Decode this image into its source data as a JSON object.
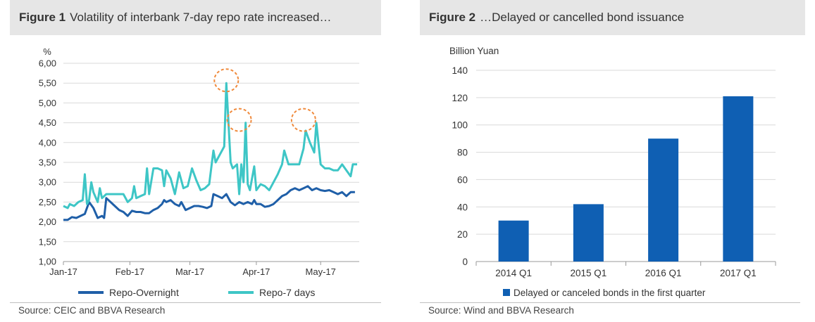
{
  "colors": {
    "overnight": "#1f5fa8",
    "seven_day": "#3ec6c6",
    "bar": "#0f5fb3",
    "circle": "#f08a3c",
    "grid": "#d9d9d9"
  },
  "figure1": {
    "label": "Figure 1",
    "title": "Volatility of interbank 7-day repo rate increased…",
    "source": "Source: CEIC and BBVA Research"
  },
  "figure2": {
    "label": "Figure 2",
    "title": "…Delayed or cancelled bond issuance",
    "source": "Source: Wind and BBVA Research"
  },
  "chart_data": [
    {
      "type": "line",
      "ylabel": "%",
      "ylim": [
        1.0,
        6.0
      ],
      "yticks": [
        "1,00",
        "1,50",
        "2,00",
        "2,50",
        "3,00",
        "3,50",
        "4,00",
        "4,50",
        "5,00",
        "5,50",
        "6,00"
      ],
      "xticks": [
        {
          "label": "Jan-17",
          "x": 0
        },
        {
          "label": "Feb-17",
          "x": 31
        },
        {
          "label": "Mar-17",
          "x": 59
        },
        {
          "label": "Apr-17",
          "x": 90
        },
        {
          "label": "May-17",
          "x": 120
        }
      ],
      "xlim": [
        0,
        138
      ],
      "grid": true,
      "legend": "bottom",
      "highlights": [
        {
          "x": 76,
          "y": 5.5
        },
        {
          "x": 82,
          "y": 4.5
        },
        {
          "x": 112,
          "y": 4.5
        }
      ],
      "series": [
        {
          "name": "Repo-Overnight",
          "color_key": "overnight",
          "points": [
            [
              0,
              2.05
            ],
            [
              2,
              2.05
            ],
            [
              4,
              2.12
            ],
            [
              6,
              2.1
            ],
            [
              8,
              2.15
            ],
            [
              10,
              2.2
            ],
            [
              12,
              2.5
            ],
            [
              14,
              2.35
            ],
            [
              16,
              2.1
            ],
            [
              18,
              2.15
            ],
            [
              19,
              2.1
            ],
            [
              20,
              2.6
            ],
            [
              22,
              2.5
            ],
            [
              24,
              2.4
            ],
            [
              26,
              2.3
            ],
            [
              28,
              2.25
            ],
            [
              30,
              2.15
            ],
            [
              32,
              2.28
            ],
            [
              34,
              2.25
            ],
            [
              36,
              2.25
            ],
            [
              38,
              2.22
            ],
            [
              40,
              2.22
            ],
            [
              42,
              2.3
            ],
            [
              44,
              2.35
            ],
            [
              46,
              2.45
            ],
            [
              47,
              2.55
            ],
            [
              48,
              2.5
            ],
            [
              50,
              2.55
            ],
            [
              52,
              2.45
            ],
            [
              54,
              2.4
            ],
            [
              55,
              2.5
            ],
            [
              57,
              2.3
            ],
            [
              59,
              2.35
            ],
            [
              61,
              2.4
            ],
            [
              63,
              2.4
            ],
            [
              65,
              2.38
            ],
            [
              67,
              2.35
            ],
            [
              69,
              2.4
            ],
            [
              70,
              2.7
            ],
            [
              72,
              2.65
            ],
            [
              74,
              2.6
            ],
            [
              76,
              2.7
            ],
            [
              78,
              2.5
            ],
            [
              80,
              2.42
            ],
            [
              82,
              2.5
            ],
            [
              84,
              2.45
            ],
            [
              86,
              2.5
            ],
            [
              88,
              2.45
            ],
            [
              89,
              2.55
            ],
            [
              90,
              2.45
            ],
            [
              92,
              2.45
            ],
            [
              94,
              2.38
            ],
            [
              96,
              2.4
            ],
            [
              98,
              2.45
            ],
            [
              100,
              2.55
            ],
            [
              102,
              2.65
            ],
            [
              104,
              2.7
            ],
            [
              106,
              2.8
            ],
            [
              108,
              2.85
            ],
            [
              110,
              2.8
            ],
            [
              112,
              2.85
            ],
            [
              114,
              2.9
            ],
            [
              116,
              2.8
            ],
            [
              118,
              2.85
            ],
            [
              120,
              2.8
            ],
            [
              122,
              2.78
            ],
            [
              124,
              2.8
            ],
            [
              126,
              2.75
            ],
            [
              128,
              2.7
            ],
            [
              130,
              2.75
            ],
            [
              132,
              2.65
            ],
            [
              134,
              2.75
            ],
            [
              136,
              2.75
            ]
          ]
        },
        {
          "name": "Repo-7 days",
          "color_key": "seven_day",
          "points": [
            [
              0,
              2.4
            ],
            [
              2,
              2.35
            ],
            [
              3,
              2.45
            ],
            [
              5,
              2.4
            ],
            [
              7,
              2.5
            ],
            [
              9,
              2.55
            ],
            [
              10,
              3.2
            ],
            [
              11,
              2.45
            ],
            [
              12,
              2.55
            ],
            [
              13,
              3.0
            ],
            [
              14,
              2.75
            ],
            [
              16,
              2.5
            ],
            [
              17,
              2.85
            ],
            [
              18,
              2.6
            ],
            [
              20,
              2.7
            ],
            [
              24,
              2.7
            ],
            [
              28,
              2.7
            ],
            [
              30,
              2.5
            ],
            [
              32,
              2.6
            ],
            [
              33,
              2.9
            ],
            [
              34,
              2.6
            ],
            [
              36,
              2.65
            ],
            [
              38,
              2.7
            ],
            [
              39,
              3.35
            ],
            [
              40,
              2.7
            ],
            [
              42,
              3.35
            ],
            [
              44,
              3.35
            ],
            [
              46,
              3.3
            ],
            [
              47,
              2.9
            ],
            [
              48,
              3.3
            ],
            [
              50,
              3.1
            ],
            [
              52,
              2.7
            ],
            [
              54,
              3.25
            ],
            [
              56,
              2.85
            ],
            [
              58,
              2.9
            ],
            [
              60,
              3.35
            ],
            [
              62,
              3.05
            ],
            [
              64,
              2.8
            ],
            [
              66,
              2.85
            ],
            [
              68,
              2.95
            ],
            [
              70,
              3.8
            ],
            [
              71,
              3.5
            ],
            [
              73,
              3.7
            ],
            [
              75,
              3.9
            ],
            [
              76,
              5.5
            ],
            [
              78,
              3.5
            ],
            [
              79,
              3.35
            ],
            [
              81,
              3.45
            ],
            [
              82,
              2.7
            ],
            [
              83,
              3.45
            ],
            [
              84,
              3.0
            ],
            [
              85,
              4.5
            ],
            [
              86,
              2.95
            ],
            [
              87,
              2.8
            ],
            [
              89,
              3.4
            ],
            [
              90,
              2.8
            ],
            [
              92,
              2.95
            ],
            [
              94,
              2.9
            ],
            [
              96,
              2.8
            ],
            [
              98,
              3.0
            ],
            [
              100,
              3.2
            ],
            [
              102,
              3.45
            ],
            [
              103,
              3.8
            ],
            [
              105,
              3.45
            ],
            [
              110,
              3.45
            ],
            [
              112,
              3.85
            ],
            [
              113,
              4.3
            ],
            [
              115,
              4.0
            ],
            [
              117,
              3.75
            ],
            [
              118,
              4.5
            ],
            [
              120,
              3.45
            ],
            [
              122,
              3.35
            ],
            [
              124,
              3.35
            ],
            [
              126,
              3.3
            ],
            [
              128,
              3.3
            ],
            [
              130,
              3.45
            ],
            [
              132,
              3.3
            ],
            [
              134,
              3.15
            ],
            [
              135,
              3.45
            ],
            [
              137,
              3.45
            ]
          ]
        }
      ]
    },
    {
      "type": "bar",
      "ylabel": "Billion Yuan",
      "ylim": [
        0,
        140
      ],
      "yticks": [
        "0",
        "20",
        "40",
        "60",
        "80",
        "100",
        "120",
        "140"
      ],
      "categories": [
        "2014 Q1",
        "2015 Q1",
        "2016 Q1",
        "2017 Q1"
      ],
      "grid": true,
      "legend": "bottom",
      "series": [
        {
          "name": "Delayed or canceled bonds in the first quarter",
          "values": [
            30,
            42,
            90,
            121
          ]
        }
      ]
    }
  ]
}
